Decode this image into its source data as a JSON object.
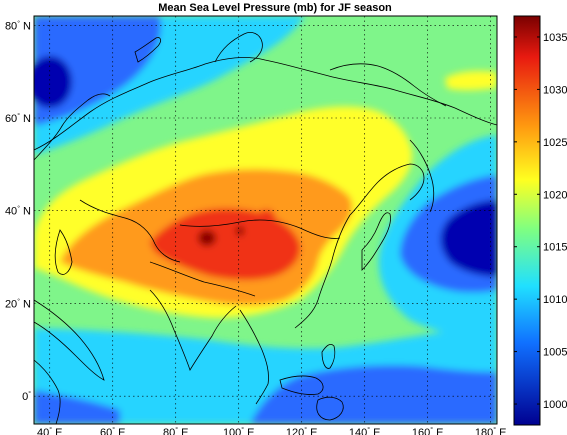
{
  "title": "Mean Sea Level Pressure (mb) for JF season",
  "map": {
    "lon_range": [
      35,
      182
    ],
    "lat_range": [
      -6,
      82
    ],
    "lon_ticks": [
      {
        "deg": "40",
        "suffix": " E",
        "value": 40
      },
      {
        "deg": "60",
        "suffix": " E",
        "value": 60
      },
      {
        "deg": "80",
        "suffix": " E",
        "value": 80
      },
      {
        "deg": "100",
        "suffix": " E",
        "value": 100
      },
      {
        "deg": "120",
        "suffix": " E",
        "value": 120
      },
      {
        "deg": "140",
        "suffix": " E",
        "value": 140
      },
      {
        "deg": "160",
        "suffix": " E",
        "value": 160
      },
      {
        "deg": "180",
        "suffix": " E",
        "value": 180
      }
    ],
    "lat_ticks": [
      {
        "deg": "80",
        "suffix": " N",
        "value": 80
      },
      {
        "deg": "60",
        "suffix": " N",
        "value": 60
      },
      {
        "deg": "40",
        "suffix": " N",
        "value": 40
      },
      {
        "deg": "20",
        "suffix": " N",
        "value": 20
      },
      {
        "deg": "0",
        "suffix": "",
        "value": 0
      }
    ],
    "grid": "dotted"
  },
  "colorbar": {
    "range": [
      998,
      1037
    ],
    "ticks": [
      "1035",
      "1030",
      "1025",
      "1020",
      "1015",
      "1010",
      "1005",
      "1000"
    ],
    "tick_values": [
      1035,
      1030,
      1025,
      1020,
      1015,
      1010,
      1005,
      1000
    ],
    "colors": {
      "dark_blue": "#0000b0",
      "blue": "#2a6bff",
      "cyan": "#28d4ff",
      "green": "#7ff58a",
      "yellow": "#ffff2a",
      "orange": "#ff9a1c",
      "red": "#f03018",
      "dark_red": "#8c0000"
    }
  }
}
